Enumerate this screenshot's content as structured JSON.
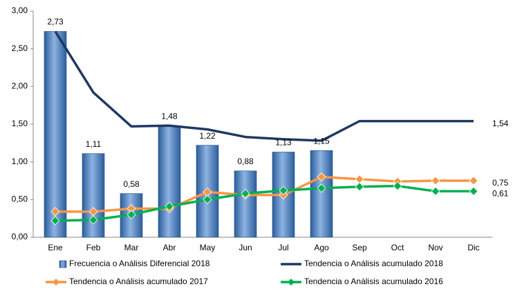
{
  "chart_data": {
    "type": "combo",
    "categories": [
      "Ene",
      "Feb",
      "Mar",
      "Abr",
      "May",
      "Jun",
      "Jul",
      "Ago",
      "Sep",
      "Oct",
      "Nov",
      "Dic"
    ],
    "bars": {
      "name": "Frecuencia o Análisis Diferencial 2018",
      "color": "#4f81bd",
      "values": [
        2.73,
        1.11,
        0.58,
        1.48,
        1.22,
        0.88,
        1.13,
        1.15,
        null,
        null,
        null,
        null
      ],
      "value_labels": [
        "2,73",
        "1,11",
        "0,58",
        "1,48",
        "1,22",
        "0,88",
        "1,13",
        "1,15",
        null,
        null,
        null,
        null
      ]
    },
    "series": [
      {
        "name": "Tendencia o Análisis acumulado 2018",
        "color": "#1f3864",
        "marker": false,
        "values": [
          2.73,
          1.92,
          1.47,
          1.48,
          1.43,
          1.33,
          1.3,
          1.28,
          1.54,
          1.54,
          1.54,
          1.54
        ],
        "value_labels": [
          null,
          null,
          null,
          null,
          null,
          null,
          null,
          null,
          null,
          null,
          null,
          "1,54"
        ]
      },
      {
        "name": "Tendencia o Análisis acumulado 2017",
        "color": "#f79646",
        "marker": true,
        "values": [
          0.34,
          0.34,
          0.38,
          0.38,
          0.6,
          0.56,
          0.56,
          0.8,
          0.77,
          0.74,
          0.75,
          0.75
        ],
        "value_labels": [
          null,
          null,
          null,
          null,
          null,
          null,
          null,
          null,
          null,
          null,
          null,
          "0,75"
        ]
      },
      {
        "name": "Tendencia o Análisis acumulado 2016",
        "color": "#00b050",
        "marker": true,
        "values": [
          0.22,
          0.23,
          0.3,
          0.41,
          0.5,
          0.58,
          0.62,
          0.65,
          0.67,
          0.68,
          0.61,
          0.61
        ],
        "value_labels": [
          null,
          null,
          null,
          null,
          null,
          null,
          null,
          null,
          null,
          null,
          null,
          "0,61"
        ]
      }
    ],
    "ylim": [
      0,
      3
    ],
    "yticks": [
      {
        "value": 0,
        "label": "0,00"
      },
      {
        "value": 0.5,
        "label": "0,50"
      },
      {
        "value": 1,
        "label": "1,00"
      },
      {
        "value": 1.5,
        "label": "1,50"
      },
      {
        "value": 2,
        "label": "2,00"
      },
      {
        "value": 2.5,
        "label": "2,50"
      },
      {
        "value": 3,
        "label": "3,00"
      }
    ],
    "grid": false
  }
}
